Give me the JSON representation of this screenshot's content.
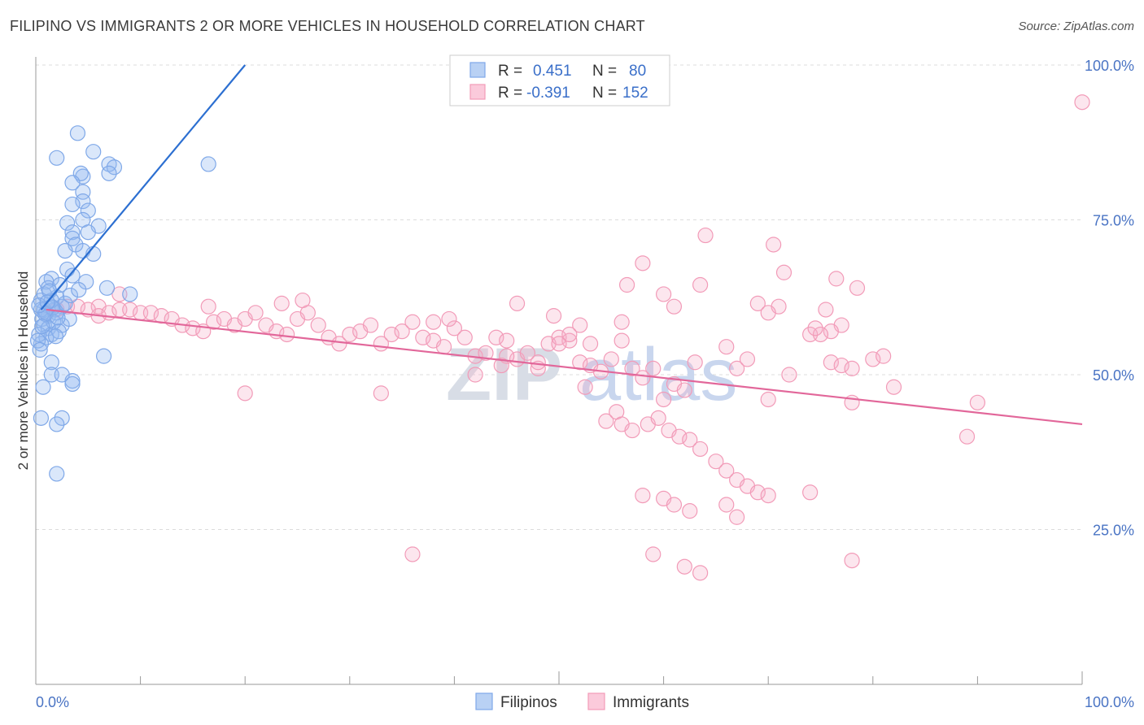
{
  "title": "FILIPINO VS IMMIGRANTS 2 OR MORE VEHICLES IN HOUSEHOLD CORRELATION CHART",
  "source": "Source: ZipAtlas.com",
  "watermark": {
    "zip": "ZIP",
    "atlas": "atlas"
  },
  "legend": {
    "r_label": "R =",
    "n_label": "N =",
    "rows": [
      {
        "name": "Filipinos",
        "r": "0.451",
        "n": "80",
        "color": "#7fa8e8"
      },
      {
        "name": "Immigrants",
        "r": "-0.391",
        "n": "152",
        "color": "#f29bb8"
      }
    ]
  },
  "chart_data": {
    "type": "scatter",
    "ylabel": "2 or more Vehicles in Household",
    "xlim": [
      0,
      100
    ],
    "ylim": [
      0,
      100
    ],
    "x_tick_labels": [
      "0.0%",
      "100.0%"
    ],
    "y_ticks": [
      25,
      50,
      75,
      100
    ],
    "y_tick_labels": [
      "25.0%",
      "50.0%",
      "75.0%",
      "100.0%"
    ],
    "grid": true,
    "series": [
      {
        "name": "Filipinos",
        "color": "#7fa8e8",
        "line_color": "#2c6fd1",
        "trend": [
          [
            0.5,
            60.5
          ],
          [
            20,
            100
          ]
        ],
        "points": [
          [
            4,
            89
          ],
          [
            5.5,
            86
          ],
          [
            7,
            84
          ],
          [
            7.5,
            83.5
          ],
          [
            4.5,
            82
          ],
          [
            2,
            85
          ],
          [
            16.5,
            84
          ],
          [
            7,
            82.5
          ],
          [
            4.3,
            82.5
          ],
          [
            3.5,
            81
          ],
          [
            4.5,
            79.5
          ],
          [
            4.5,
            78
          ],
          [
            3.5,
            77.5
          ],
          [
            5,
            76.5
          ],
          [
            4.5,
            75
          ],
          [
            3,
            74.5
          ],
          [
            6,
            74
          ],
          [
            3.5,
            73
          ],
          [
            5,
            73
          ],
          [
            3.5,
            72
          ],
          [
            3.8,
            71
          ],
          [
            2.8,
            70
          ],
          [
            4.5,
            70
          ],
          [
            5.5,
            69.5
          ],
          [
            3,
            67
          ],
          [
            3.5,
            66
          ],
          [
            1.5,
            65.5
          ],
          [
            1,
            65
          ],
          [
            4.8,
            65
          ],
          [
            6.8,
            64
          ],
          [
            9,
            63
          ],
          [
            2,
            62.5
          ],
          [
            0.5,
            62
          ],
          [
            1.5,
            61
          ],
          [
            2.5,
            61
          ],
          [
            0.8,
            60.5
          ],
          [
            1.8,
            60.5
          ],
          [
            1.2,
            59.5
          ],
          [
            0.6,
            59
          ],
          [
            0.8,
            58
          ],
          [
            2.5,
            58
          ],
          [
            1.2,
            57.5
          ],
          [
            1.5,
            56.5
          ],
          [
            1,
            56
          ],
          [
            0.5,
            55
          ],
          [
            6.5,
            53
          ],
          [
            1.5,
            52
          ],
          [
            1.5,
            50
          ],
          [
            2.5,
            50
          ],
          [
            3.5,
            49
          ],
          [
            3.5,
            48.5
          ],
          [
            0.7,
            48
          ],
          [
            0.5,
            43
          ],
          [
            2.5,
            43
          ],
          [
            2,
            42
          ],
          [
            2,
            34
          ],
          [
            0.5,
            60.5
          ],
          [
            1,
            60
          ],
          [
            2,
            60
          ],
          [
            1.5,
            62
          ],
          [
            0.8,
            63
          ],
          [
            1.2,
            64
          ],
          [
            2.3,
            64.5
          ],
          [
            3.2,
            59
          ],
          [
            1.7,
            58.5
          ],
          [
            2.2,
            57
          ],
          [
            0.3,
            56.5
          ],
          [
            0.2,
            55.5
          ],
          [
            0.4,
            54
          ],
          [
            1.3,
            63.5
          ],
          [
            2.8,
            61.5
          ],
          [
            1.6,
            60.8
          ],
          [
            0.9,
            59.8
          ],
          [
            2.1,
            59.2
          ],
          [
            0.6,
            57.8
          ],
          [
            1.9,
            56.2
          ],
          [
            3.3,
            62.8
          ],
          [
            4.1,
            63.7
          ],
          [
            0.3,
            61.2
          ],
          [
            1.1,
            61.7
          ]
        ]
      },
      {
        "name": "Immigrants",
        "color": "#f29bb8",
        "line_color": "#e2679a",
        "trend": [
          [
            1,
            60.5
          ],
          [
            100,
            42
          ]
        ],
        "points": [
          [
            100,
            94
          ],
          [
            64,
            72.5
          ],
          [
            58,
            68
          ],
          [
            70.5,
            71
          ],
          [
            76.5,
            65.5
          ],
          [
            56.5,
            64.5
          ],
          [
            60,
            63
          ],
          [
            63.5,
            64.5
          ],
          [
            69,
            61.5
          ],
          [
            71,
            61
          ],
          [
            78.5,
            64
          ],
          [
            70,
            60
          ],
          [
            75.5,
            60.5
          ],
          [
            77,
            58
          ],
          [
            76,
            57
          ],
          [
            46,
            61.5
          ],
          [
            49.5,
            59.5
          ],
          [
            52,
            58
          ],
          [
            56,
            58.5
          ],
          [
            61,
            61
          ],
          [
            16.5,
            61
          ],
          [
            23.5,
            61.5
          ],
          [
            25.5,
            62
          ],
          [
            8,
            63
          ],
          [
            6,
            61
          ],
          [
            1,
            60
          ],
          [
            2,
            60.5
          ],
          [
            3,
            61
          ],
          [
            4,
            61
          ],
          [
            5,
            60.5
          ],
          [
            6,
            59.5
          ],
          [
            7,
            60
          ],
          [
            8,
            60.5
          ],
          [
            9,
            60.5
          ],
          [
            10,
            60
          ],
          [
            11,
            60
          ],
          [
            12,
            59.5
          ],
          [
            13,
            59
          ],
          [
            14,
            58
          ],
          [
            15,
            57.5
          ],
          [
            16,
            57
          ],
          [
            17,
            58.5
          ],
          [
            18,
            59
          ],
          [
            19,
            58
          ],
          [
            20,
            59
          ],
          [
            21,
            60
          ],
          [
            22,
            58
          ],
          [
            23,
            57
          ],
          [
            24,
            56.5
          ],
          [
            25,
            59
          ],
          [
            26,
            60
          ],
          [
            27,
            58
          ],
          [
            28,
            56
          ],
          [
            29,
            55
          ],
          [
            30,
            56.5
          ],
          [
            31,
            57
          ],
          [
            32,
            58
          ],
          [
            33,
            55
          ],
          [
            34,
            56.5
          ],
          [
            35,
            57
          ],
          [
            36,
            58.5
          ],
          [
            37,
            56
          ],
          [
            38,
            55.5
          ],
          [
            39,
            54.5
          ],
          [
            40,
            57.5
          ],
          [
            41,
            56
          ],
          [
            42,
            53
          ],
          [
            43,
            53.5
          ],
          [
            44,
            56
          ],
          [
            45,
            55.5
          ],
          [
            46,
            52.5
          ],
          [
            47,
            53.5
          ],
          [
            48,
            51
          ],
          [
            49,
            55
          ],
          [
            50,
            56
          ],
          [
            51,
            55.5
          ],
          [
            52,
            52
          ],
          [
            53,
            51.5
          ],
          [
            54,
            50.5
          ],
          [
            55,
            52.5
          ],
          [
            56,
            55.5
          ],
          [
            57,
            51
          ],
          [
            58,
            49.5
          ],
          [
            59,
            51
          ],
          [
            60,
            46
          ],
          [
            61,
            48.5
          ],
          [
            62,
            47.5
          ],
          [
            66,
            54.5
          ],
          [
            67,
            51
          ],
          [
            68,
            52.5
          ],
          [
            70,
            46
          ],
          [
            72,
            50
          ],
          [
            74,
            56.5
          ],
          [
            75,
            56.5
          ],
          [
            71.5,
            66.5
          ],
          [
            74.5,
            57.5
          ],
          [
            76,
            52
          ],
          [
            77,
            51.5
          ],
          [
            78,
            51
          ],
          [
            80,
            52.5
          ],
          [
            81,
            53
          ],
          [
            82,
            48
          ],
          [
            78,
            45.5
          ],
          [
            89,
            40
          ],
          [
            90,
            45.5
          ],
          [
            55.5,
            44
          ],
          [
            54.5,
            42.5
          ],
          [
            56,
            42
          ],
          [
            57,
            41
          ],
          [
            58.5,
            42
          ],
          [
            59.5,
            43
          ],
          [
            60.5,
            41
          ],
          [
            61.5,
            40
          ],
          [
            62.5,
            39.5
          ],
          [
            63.5,
            38
          ],
          [
            65,
            36
          ],
          [
            66,
            34.5
          ],
          [
            67,
            33
          ],
          [
            68,
            32
          ],
          [
            69,
            31
          ],
          [
            70,
            30.5
          ],
          [
            58,
            30.5
          ],
          [
            60,
            30
          ],
          [
            61,
            29
          ],
          [
            62.5,
            28
          ],
          [
            66,
            29
          ],
          [
            67,
            27
          ],
          [
            74,
            31
          ],
          [
            59,
            21
          ],
          [
            62,
            19
          ],
          [
            63.5,
            18
          ],
          [
            36,
            21
          ],
          [
            78,
            20
          ],
          [
            33,
            47
          ],
          [
            20,
            47
          ],
          [
            42,
            50
          ],
          [
            48,
            52
          ],
          [
            45,
            53
          ],
          [
            50,
            55
          ],
          [
            51,
            56.5
          ],
          [
            53,
            55
          ],
          [
            63,
            52
          ],
          [
            44.5,
            51.5
          ],
          [
            52.5,
            48
          ],
          [
            38,
            58.5
          ],
          [
            39.5,
            59
          ]
        ]
      }
    ]
  }
}
